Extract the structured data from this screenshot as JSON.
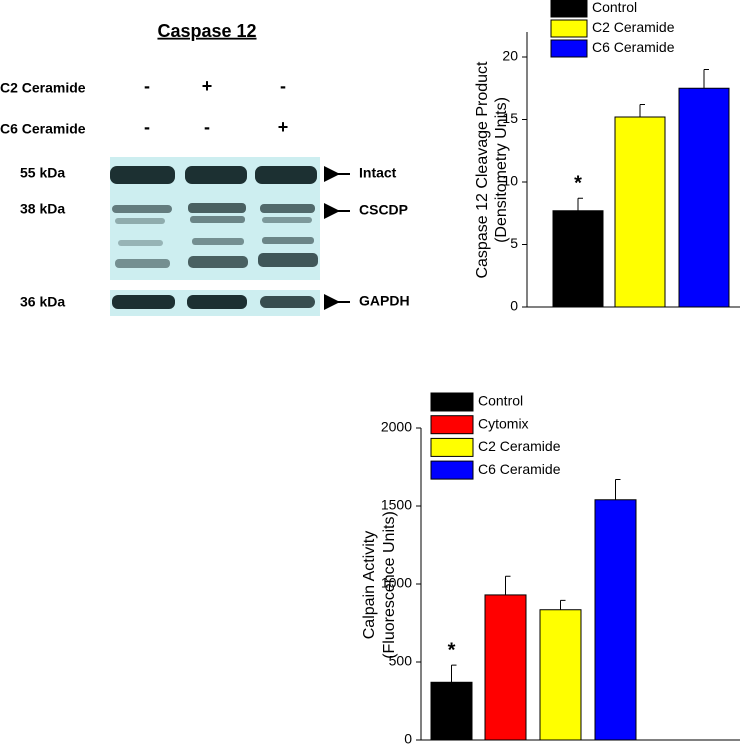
{
  "blot": {
    "title": "Caspase 12",
    "rows": [
      {
        "label": "C2 Ceramide",
        "marks": [
          "-",
          "+",
          "-"
        ]
      },
      {
        "label": "C6 Ceramide",
        "marks": [
          "-",
          "-",
          "+"
        ]
      }
    ],
    "bands": [
      {
        "size": "55 kDa",
        "name": "Intact"
      },
      {
        "size": "38 kDa",
        "name": "CSCDP"
      },
      {
        "size": "36 kDa",
        "name": "GAPDH"
      }
    ]
  },
  "chart_data": [
    {
      "type": "bar",
      "ylabel": [
        "Caspase 12 Cleavage Product",
        "(Densitometry Units)"
      ],
      "categories": [
        "Control",
        "C2 Ceramide",
        "C6 Ceramide"
      ],
      "colors": [
        "#000000",
        "#ffff00",
        "#0000ff"
      ],
      "values": [
        7.7,
        15.2,
        17.5
      ],
      "errors": [
        1.0,
        1.0,
        1.5
      ],
      "annotation": "*",
      "ylim": [
        0,
        22
      ],
      "yticks": [
        0,
        5,
        10,
        15,
        20
      ]
    },
    {
      "type": "bar",
      "ylabel": [
        "Calpain Activity",
        "(Fluorescence Units)"
      ],
      "categories": [
        "Control",
        "Cytomix",
        "C2 Ceramide",
        "C6 Ceramide"
      ],
      "colors": [
        "#000000",
        "#ff0000",
        "#ffff00",
        "#0000ff"
      ],
      "values": [
        370,
        930,
        835,
        1540
      ],
      "errors": [
        110,
        120,
        60,
        130
      ],
      "annotation": "*",
      "ylim": [
        0,
        2000
      ],
      "yticks": [
        0,
        500,
        1000,
        1500,
        2000
      ]
    }
  ]
}
